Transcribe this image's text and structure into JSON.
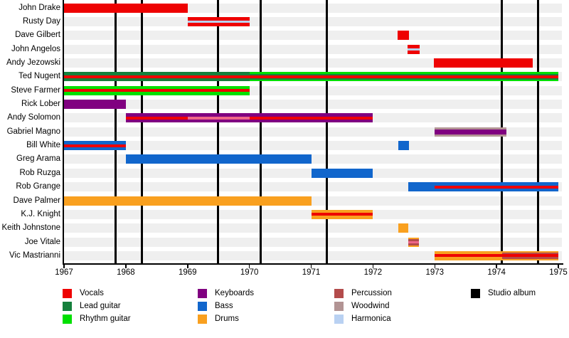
{
  "chart_data": {
    "type": "timeline",
    "description_colors": {
      "vocals": "#ee0202",
      "vocals_backing": "#ee6688",
      "lead": "#15803c",
      "rhythm": "#00e000",
      "keyboards": "#800080",
      "bass": "#1166cc",
      "drums": "#f9a01f",
      "percussion": "#b34b4b",
      "woodwind": "#b29494",
      "harmonica": "#b9d1f2",
      "album": "#000000",
      "lane": "#efefef"
    },
    "x_axis": {
      "start": 1967,
      "end": 1975,
      "ticks": [
        "1967",
        "1968",
        "1969",
        "1970",
        "1971",
        "1972",
        "1973",
        "1974",
        "1975"
      ]
    },
    "album_years": [
      1967.84,
      1968.26,
      1969.49,
      1970.18,
      1971.25,
      1974.09,
      1974.67
    ],
    "members": [
      {
        "name": "John Drake",
        "segments": [
          {
            "from": 1967,
            "to": 1969,
            "stripes": [
              [
                "vocals",
                13
              ]
            ]
          }
        ]
      },
      {
        "name": "Rusty Day",
        "segments": [
          {
            "from": 1969,
            "to": 1970,
            "stripes": [
              [
                "vocals",
                5
              ],
              [
                "harmonica",
                3
              ],
              [
                "vocals",
                5
              ]
            ]
          }
        ]
      },
      {
        "name": "Dave Gilbert",
        "segments": [
          {
            "from": 1972.4,
            "to": 1972.58,
            "stripes": [
              [
                "vocals",
                13
              ]
            ]
          }
        ]
      },
      {
        "name": "John Angelos",
        "segments": [
          {
            "from": 1972.56,
            "to": 1972.76,
            "stripes": [
              [
                "vocals",
                5
              ],
              [
                "harmonica",
                3
              ],
              [
                "vocals",
                5
              ]
            ]
          }
        ]
      },
      {
        "name": "Andy Jezowski",
        "segments": [
          {
            "from": 1972.99,
            "to": 1974.59,
            "stripes": [
              [
                "vocals",
                13
              ]
            ]
          }
        ]
      },
      {
        "name": "Ted Nugent",
        "segments": [
          {
            "from": 1967,
            "to": 1970,
            "stripes": [
              [
                "lead",
                4.5
              ],
              [
                "vocals",
                4
              ],
              [
                "lead",
                4.5
              ]
            ]
          },
          {
            "from": 1970,
            "to": 1975,
            "stripes": [
              [
                "rhythm",
                2.5
              ],
              [
                "lead",
                2
              ],
              [
                "vocals",
                4
              ],
              [
                "lead",
                2
              ],
              [
                "rhythm",
                2.5
              ]
            ]
          }
        ]
      },
      {
        "name": "Steve Farmer",
        "segments": [
          {
            "from": 1967,
            "to": 1970,
            "stripes": [
              [
                "rhythm",
                4.5
              ],
              [
                "vocals",
                4
              ],
              [
                "rhythm",
                4.5
              ]
            ]
          }
        ]
      },
      {
        "name": "Rick Lober",
        "segments": [
          {
            "from": 1967,
            "to": 1968,
            "stripes": [
              [
                "keyboards",
                13
              ]
            ]
          }
        ]
      },
      {
        "name": "Andy Solomon",
        "segments": [
          {
            "from": 1968,
            "to": 1969,
            "stripes": [
              [
                "keyboards",
                4.5
              ],
              [
                "vocals",
                4
              ],
              [
                "keyboards",
                4.5
              ]
            ]
          },
          {
            "from": 1969,
            "to": 1970,
            "stripes": [
              [
                "keyboards",
                4.5
              ],
              [
                "vocals_backing",
                4
              ],
              [
                "keyboards",
                4.5
              ]
            ]
          },
          {
            "from": 1970,
            "to": 1972,
            "stripes": [
              [
                "keyboards",
                4.5
              ],
              [
                "vocals",
                4
              ],
              [
                "keyboards",
                4.5
              ]
            ]
          }
        ]
      },
      {
        "name": "Gabriel Magno",
        "segments": [
          {
            "from": 1973,
            "to": 1974.16,
            "stripes": [
              [
                "woodwind",
                3
              ],
              [
                "keyboards",
                7
              ],
              [
                "woodwind",
                3
              ]
            ]
          }
        ]
      },
      {
        "name": "Bill White",
        "segments": [
          {
            "from": 1967,
            "to": 1968,
            "stripes": [
              [
                "bass",
                4.5
              ],
              [
                "vocals",
                4
              ],
              [
                "bass",
                4.5
              ]
            ]
          },
          {
            "from": 1972.41,
            "to": 1972.58,
            "stripes": [
              [
                "bass",
                13
              ]
            ]
          }
        ]
      },
      {
        "name": "Greg Arama",
        "segments": [
          {
            "from": 1968,
            "to": 1971,
            "stripes": [
              [
                "bass",
                13
              ]
            ]
          }
        ]
      },
      {
        "name": "Rob Ruzga",
        "segments": [
          {
            "from": 1971,
            "to": 1972,
            "stripes": [
              [
                "bass",
                13
              ]
            ]
          }
        ]
      },
      {
        "name": "Rob Grange",
        "segments": [
          {
            "from": 1972.57,
            "to": 1973,
            "stripes": [
              [
                "bass",
                13
              ]
            ]
          },
          {
            "from": 1973,
            "to": 1975,
            "stripes": [
              [
                "bass",
                4.5
              ],
              [
                "vocals",
                4
              ],
              [
                "bass",
                4.5
              ]
            ]
          }
        ]
      },
      {
        "name": "Dave Palmer",
        "segments": [
          {
            "from": 1967,
            "to": 1971,
            "stripes": [
              [
                "drums",
                13
              ]
            ]
          }
        ]
      },
      {
        "name": "K.J. Knight",
        "segments": [
          {
            "from": 1971,
            "to": 1972,
            "stripes": [
              [
                "drums",
                4.5
              ],
              [
                "vocals",
                4
              ],
              [
                "drums",
                4.5
              ]
            ]
          }
        ]
      },
      {
        "name": "Keith Johnstone",
        "segments": [
          {
            "from": 1972.41,
            "to": 1972.57,
            "stripes": [
              [
                "drums",
                13
              ]
            ]
          }
        ]
      },
      {
        "name": "Joe Vitale",
        "segments": [
          {
            "from": 1972.57,
            "to": 1972.74,
            "stripes": [
              [
                "drums",
                2
              ],
              [
                "percussion",
                3
              ],
              [
                "vocals_backing",
                3
              ],
              [
                "percussion",
                3
              ],
              [
                "drums",
                2
              ]
            ]
          }
        ]
      },
      {
        "name": "Vic Mastrianni",
        "segments": [
          {
            "from": 1973,
            "to": 1974.09,
            "stripes": [
              [
                "drums",
                4.5
              ],
              [
                "vocals",
                4
              ],
              [
                "drums",
                4.5
              ]
            ]
          },
          {
            "from": 1974.09,
            "to": 1975,
            "stripes": [
              [
                "drums",
                2
              ],
              [
                "percussion",
                2.5
              ],
              [
                "vocals",
                4
              ],
              [
                "percussion",
                2.5
              ],
              [
                "drums",
                2
              ]
            ]
          }
        ]
      }
    ],
    "legend_columns": [
      [
        {
          "label": "Vocals",
          "color": "vocals"
        },
        {
          "label": "Lead guitar",
          "color": "lead"
        },
        {
          "label": "Rhythm guitar",
          "color": "rhythm"
        }
      ],
      [
        {
          "label": "Keyboards",
          "color": "keyboards"
        },
        {
          "label": "Bass",
          "color": "bass"
        },
        {
          "label": "Drums",
          "color": "drums"
        }
      ],
      [
        {
          "label": "Percussion",
          "color": "percussion"
        },
        {
          "label": "Woodwind",
          "color": "woodwind"
        },
        {
          "label": "Harmonica",
          "color": "harmonica"
        }
      ],
      [
        {
          "label": "Studio album",
          "color": "album"
        }
      ]
    ]
  }
}
